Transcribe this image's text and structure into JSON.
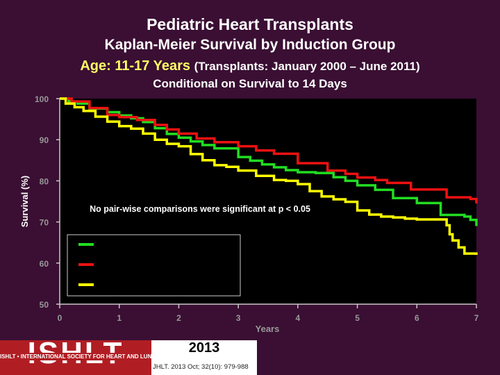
{
  "title": "Pediatric Heart Transplants",
  "subtitle": "Kaplan-Meier Survival by Induction Group",
  "subtitle2_age": "Age: 11-17 Years",
  "subtitle2_period": "(Transplants: January 2000 – June 2011)",
  "subtitle3": "Conditional on Survival to 14 Days",
  "colors": {
    "background": "#3a0f33",
    "plot_bg": "#000000",
    "green": "#22dd22",
    "red": "#ee1111",
    "yellow": "#ffff00"
  },
  "chart_data": {
    "type": "line",
    "step": true,
    "title": "",
    "xlabel": "Years",
    "ylabel": "Survival (%)",
    "xlim": [
      0,
      7
    ],
    "ylim": [
      50,
      100
    ],
    "xticks": [
      0,
      1,
      2,
      3,
      4,
      5,
      6,
      7
    ],
    "yticks": [
      50,
      60,
      70,
      80,
      90,
      100
    ],
    "grid": false,
    "legend_placement": "lower-left",
    "annotation": "No pair-wise comparisons were significant at p < 0.05",
    "series": [
      {
        "name": "",
        "color": "#22dd22",
        "x": [
          0,
          0.15,
          0.3,
          0.5,
          0.8,
          1.0,
          1.2,
          1.4,
          1.6,
          1.8,
          2.0,
          2.2,
          2.4,
          2.6,
          3.0,
          3.2,
          3.4,
          3.6,
          3.8,
          4.0,
          4.3,
          4.6,
          4.8,
          5.0,
          5.3,
          5.6,
          6.0,
          6.4,
          6.8,
          6.9,
          7.0
        ],
        "y": [
          100,
          99.3,
          98.8,
          97.6,
          96.7,
          95.9,
          95.2,
          94.3,
          92.8,
          91.4,
          90.5,
          89.6,
          88.7,
          87.9,
          85.8,
          84.9,
          84.0,
          83.3,
          82.6,
          82.1,
          81.9,
          80.9,
          80.0,
          78.9,
          77.8,
          75.8,
          74.6,
          71.7,
          71.3,
          70.5,
          69.0
        ]
      },
      {
        "name": "",
        "color": "#ee1111",
        "x": [
          0,
          0.2,
          0.5,
          0.8,
          1.0,
          1.3,
          1.6,
          1.8,
          2.0,
          2.3,
          2.6,
          3.0,
          3.3,
          3.6,
          4.0,
          4.5,
          4.8,
          5.0,
          5.3,
          5.5,
          5.9,
          6.5,
          6.9,
          7.0
        ],
        "y": [
          100,
          99.3,
          97.7,
          96.0,
          95.5,
          94.8,
          93.6,
          92.5,
          91.5,
          90.3,
          89.4,
          88.4,
          87.4,
          86.6,
          84.3,
          82.5,
          81.7,
          80.8,
          80.2,
          79.5,
          77.9,
          76.0,
          75.6,
          74.5
        ]
      },
      {
        "name": "",
        "color": "#ffff00",
        "x": [
          0,
          0.1,
          0.25,
          0.4,
          0.6,
          0.8,
          1.0,
          1.2,
          1.4,
          1.6,
          1.8,
          2.0,
          2.2,
          2.4,
          2.6,
          2.8,
          3.0,
          3.3,
          3.6,
          3.8,
          4.0,
          4.2,
          4.4,
          4.6,
          4.8,
          5.0,
          5.2,
          5.4,
          5.6,
          5.8,
          6.0,
          6.2,
          6.4,
          6.5,
          6.55,
          6.6,
          6.7,
          6.8,
          7.0
        ],
        "y": [
          100,
          98.8,
          97.9,
          97.0,
          95.6,
          94.4,
          93.3,
          92.7,
          91.5,
          90.0,
          89.0,
          88.4,
          86.5,
          85.0,
          83.8,
          83.4,
          82.5,
          81.2,
          80.2,
          80.0,
          79.2,
          77.5,
          76.2,
          75.5,
          74.9,
          72.8,
          71.8,
          71.3,
          71.1,
          70.8,
          70.6,
          70.6,
          70.6,
          69.2,
          67.0,
          65.5,
          63.8,
          62.3,
          62.0
        ]
      }
    ]
  },
  "footer": {
    "logo_text": "ISHLT",
    "logo_tagline": "ISHLT • INTERNATIONAL SOCIETY FOR HEART AND LUNG TRANSPLANTATION",
    "year": "2013",
    "citation": "JHLT. 2013 Oct; 32(10): 979-988"
  }
}
